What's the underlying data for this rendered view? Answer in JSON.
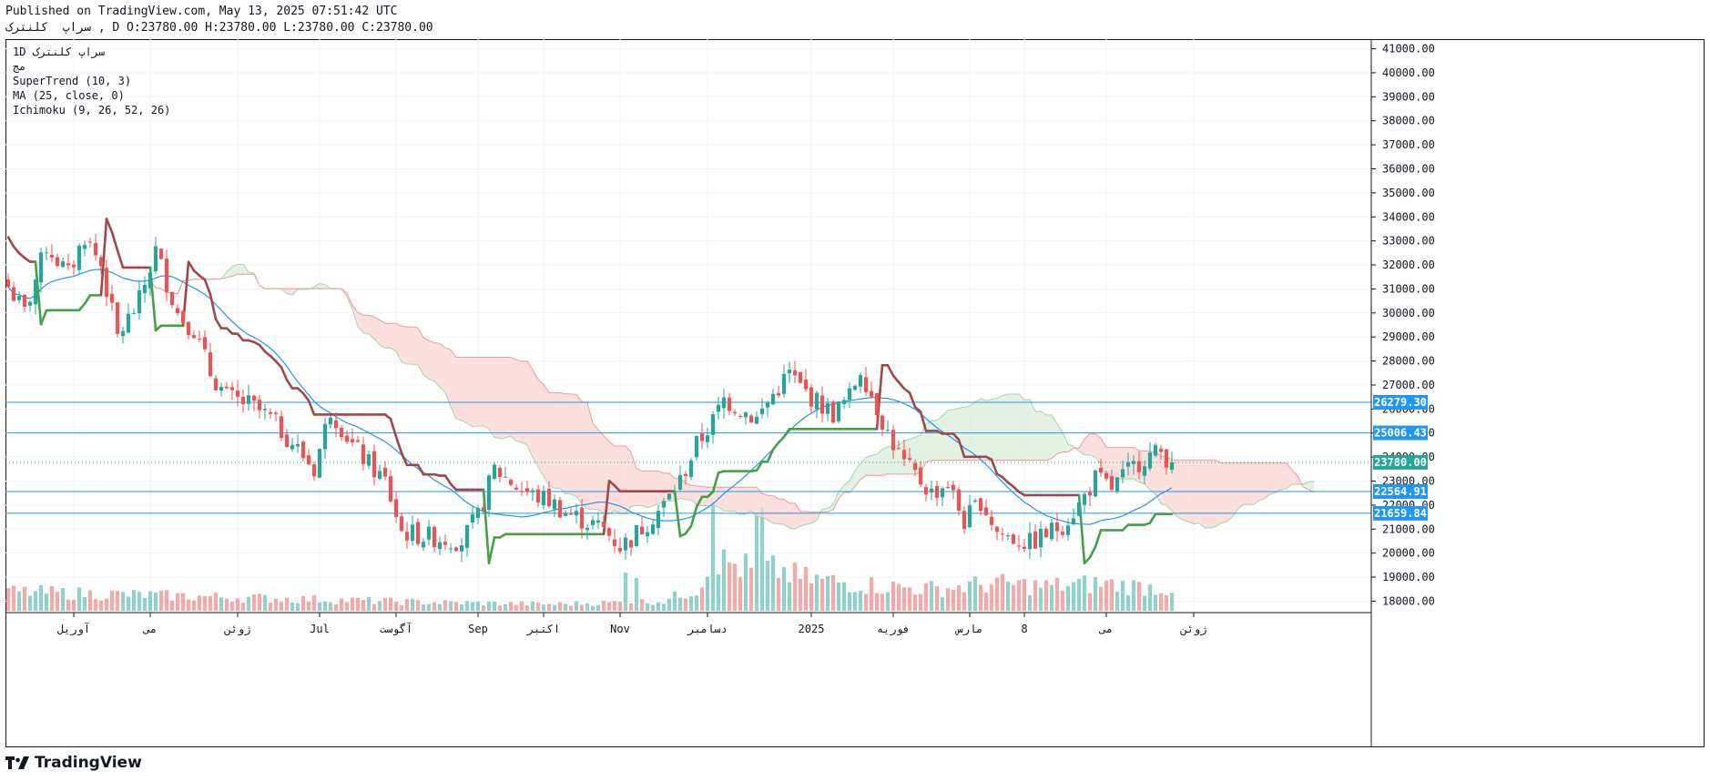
{
  "header": {
    "published": "Published on TradingView.com, May 13, 2025 07:51:42 UTC",
    "ohlc": "سراپ  کلنترک , D O:23780.00 H:23780.00 L:23780.00 C:23780.00"
  },
  "legend": {
    "symbol_line": "1D  سراپ  کلنترک",
    "sub_line": "مج",
    "indicators": [
      "SuperTrend (10, 3)",
      "MA (25, close, 0)",
      "Ichimoku (9, 26, 52, 26)"
    ]
  },
  "brand": {
    "name": "TradingView"
  },
  "colors": {
    "up": "#26a69a",
    "down": "#ef5350",
    "supertrend_up": "#43a047",
    "supertrend_down": "#a0474a",
    "ma": "#2196f3",
    "hline": "#2196f3",
    "cloud_bear": "#fbd5d3",
    "cloud_bull": "#d9eed9",
    "price_label": "#26a69a"
  },
  "chart_data": {
    "type": "candlestick",
    "y_axis": {
      "min": 17600,
      "max": 41400,
      "ticks": [
        "18000.00",
        "19000.00",
        "20000.00",
        "21000.00",
        "22000.00",
        "23000.00",
        "24000.00",
        "25000.00",
        "26000.00",
        "27000.00",
        "28000.00",
        "29000.00",
        "30000.00",
        "31000.00",
        "32000.00",
        "33000.00",
        "34000.00",
        "35000.00",
        "36000.00",
        "37000.00",
        "38000.00",
        "39000.00",
        "40000.00",
        "41000.00"
      ]
    },
    "x_axis": {
      "bars": 250,
      "labels": [
        {
          "text": "آوریل",
          "bar": 12
        },
        {
          "text": "می",
          "bar": 26
        },
        {
          "text": "ژوئن",
          "bar": 42
        },
        {
          "text": "Jul",
          "bar": 57
        },
        {
          "text": "آگوست",
          "bar": 71
        },
        {
          "text": "Sep",
          "bar": 86
        },
        {
          "text": "اکتبر",
          "bar": 98
        },
        {
          "text": "Nov",
          "bar": 112
        },
        {
          "text": "دسامبر",
          "bar": 128
        },
        {
          "text": "2025",
          "bar": 147
        },
        {
          "text": "فوریه",
          "bar": 162
        },
        {
          "text": "مارس",
          "bar": 176
        },
        {
          "text": "8",
          "bar": 186
        },
        {
          "text": "می",
          "bar": 201
        },
        {
          "text": "ژوئن",
          "bar": 217
        }
      ]
    },
    "horizontal_lines": [
      {
        "value": 26279.3,
        "label": "26279.30"
      },
      {
        "value": 25006.43,
        "label": "25006.43"
      },
      {
        "value": 22564.91,
        "label": "22564.91"
      },
      {
        "value": 21659.84,
        "label": "21659.84"
      }
    ],
    "last_price": {
      "value": 23780.0,
      "label": "23780.00"
    },
    "close_anchors": [
      [
        0,
        31100
      ],
      [
        3,
        30000
      ],
      [
        7,
        32800
      ],
      [
        11,
        31600
      ],
      [
        14,
        33200
      ],
      [
        17,
        32000
      ],
      [
        20,
        29000
      ],
      [
        24,
        30500
      ],
      [
        27,
        32600
      ],
      [
        31,
        30000
      ],
      [
        34,
        29300
      ],
      [
        37,
        27500
      ],
      [
        40,
        26500
      ],
      [
        44,
        26200
      ],
      [
        48,
        25600
      ],
      [
        52,
        24600
      ],
      [
        56,
        23500
      ],
      [
        59,
        26000
      ],
      [
        63,
        24500
      ],
      [
        66,
        23700
      ],
      [
        69,
        23000
      ],
      [
        72,
        20900
      ],
      [
        76,
        20700
      ],
      [
        80,
        20600
      ],
      [
        83,
        20500
      ],
      [
        86,
        21500
      ],
      [
        89,
        23500
      ],
      [
        93,
        22800
      ],
      [
        96,
        22400
      ],
      [
        99,
        22200
      ],
      [
        102,
        21700
      ],
      [
        105,
        21400
      ],
      [
        109,
        21000
      ],
      [
        112,
        20300
      ],
      [
        114,
        20600
      ],
      [
        117,
        21300
      ],
      [
        120,
        22000
      ],
      [
        123,
        23000
      ],
      [
        126,
        24500
      ],
      [
        129,
        25500
      ],
      [
        131,
        26400
      ],
      [
        134,
        26000
      ],
      [
        137,
        25600
      ],
      [
        140,
        26600
      ],
      [
        143,
        27500
      ],
      [
        145,
        26900
      ],
      [
        148,
        26300
      ],
      [
        151,
        25800
      ],
      [
        154,
        26500
      ],
      [
        156,
        27700
      ],
      [
        158,
        26600
      ],
      [
        161,
        25000
      ],
      [
        164,
        23700
      ],
      [
        167,
        23000
      ],
      [
        169,
        22500
      ],
      [
        172,
        22900
      ],
      [
        175,
        21300
      ],
      [
        178,
        22200
      ],
      [
        181,
        20900
      ],
      [
        184,
        20600
      ],
      [
        187,
        20400
      ],
      [
        190,
        20800
      ],
      [
        193,
        21200
      ],
      [
        196,
        22000
      ],
      [
        199,
        23100
      ],
      [
        202,
        22700
      ],
      [
        205,
        23400
      ],
      [
        208,
        24000
      ],
      [
        211,
        24200
      ],
      [
        213,
        23780
      ]
    ],
    "volume_anchors": [
      [
        0,
        0.35
      ],
      [
        20,
        0.3
      ],
      [
        40,
        0.25
      ],
      [
        60,
        0.2
      ],
      [
        80,
        0.15
      ],
      [
        100,
        0.12
      ],
      [
        120,
        0.18
      ],
      [
        126,
        0.4
      ],
      [
        129,
        0.9
      ],
      [
        133,
        0.85
      ],
      [
        137,
        0.7
      ],
      [
        141,
        0.75
      ],
      [
        145,
        0.6
      ],
      [
        150,
        0.55
      ],
      [
        155,
        0.5
      ],
      [
        160,
        0.45
      ],
      [
        170,
        0.4
      ],
      [
        180,
        0.5
      ],
      [
        190,
        0.45
      ],
      [
        200,
        0.5
      ],
      [
        213,
        0.4
      ]
    ],
    "volume_spikes": [
      [
        129,
        2.0
      ],
      [
        137,
        1.8
      ],
      [
        138,
        1.9
      ],
      [
        113,
        0.7
      ],
      [
        115,
        0.6
      ]
    ]
  }
}
